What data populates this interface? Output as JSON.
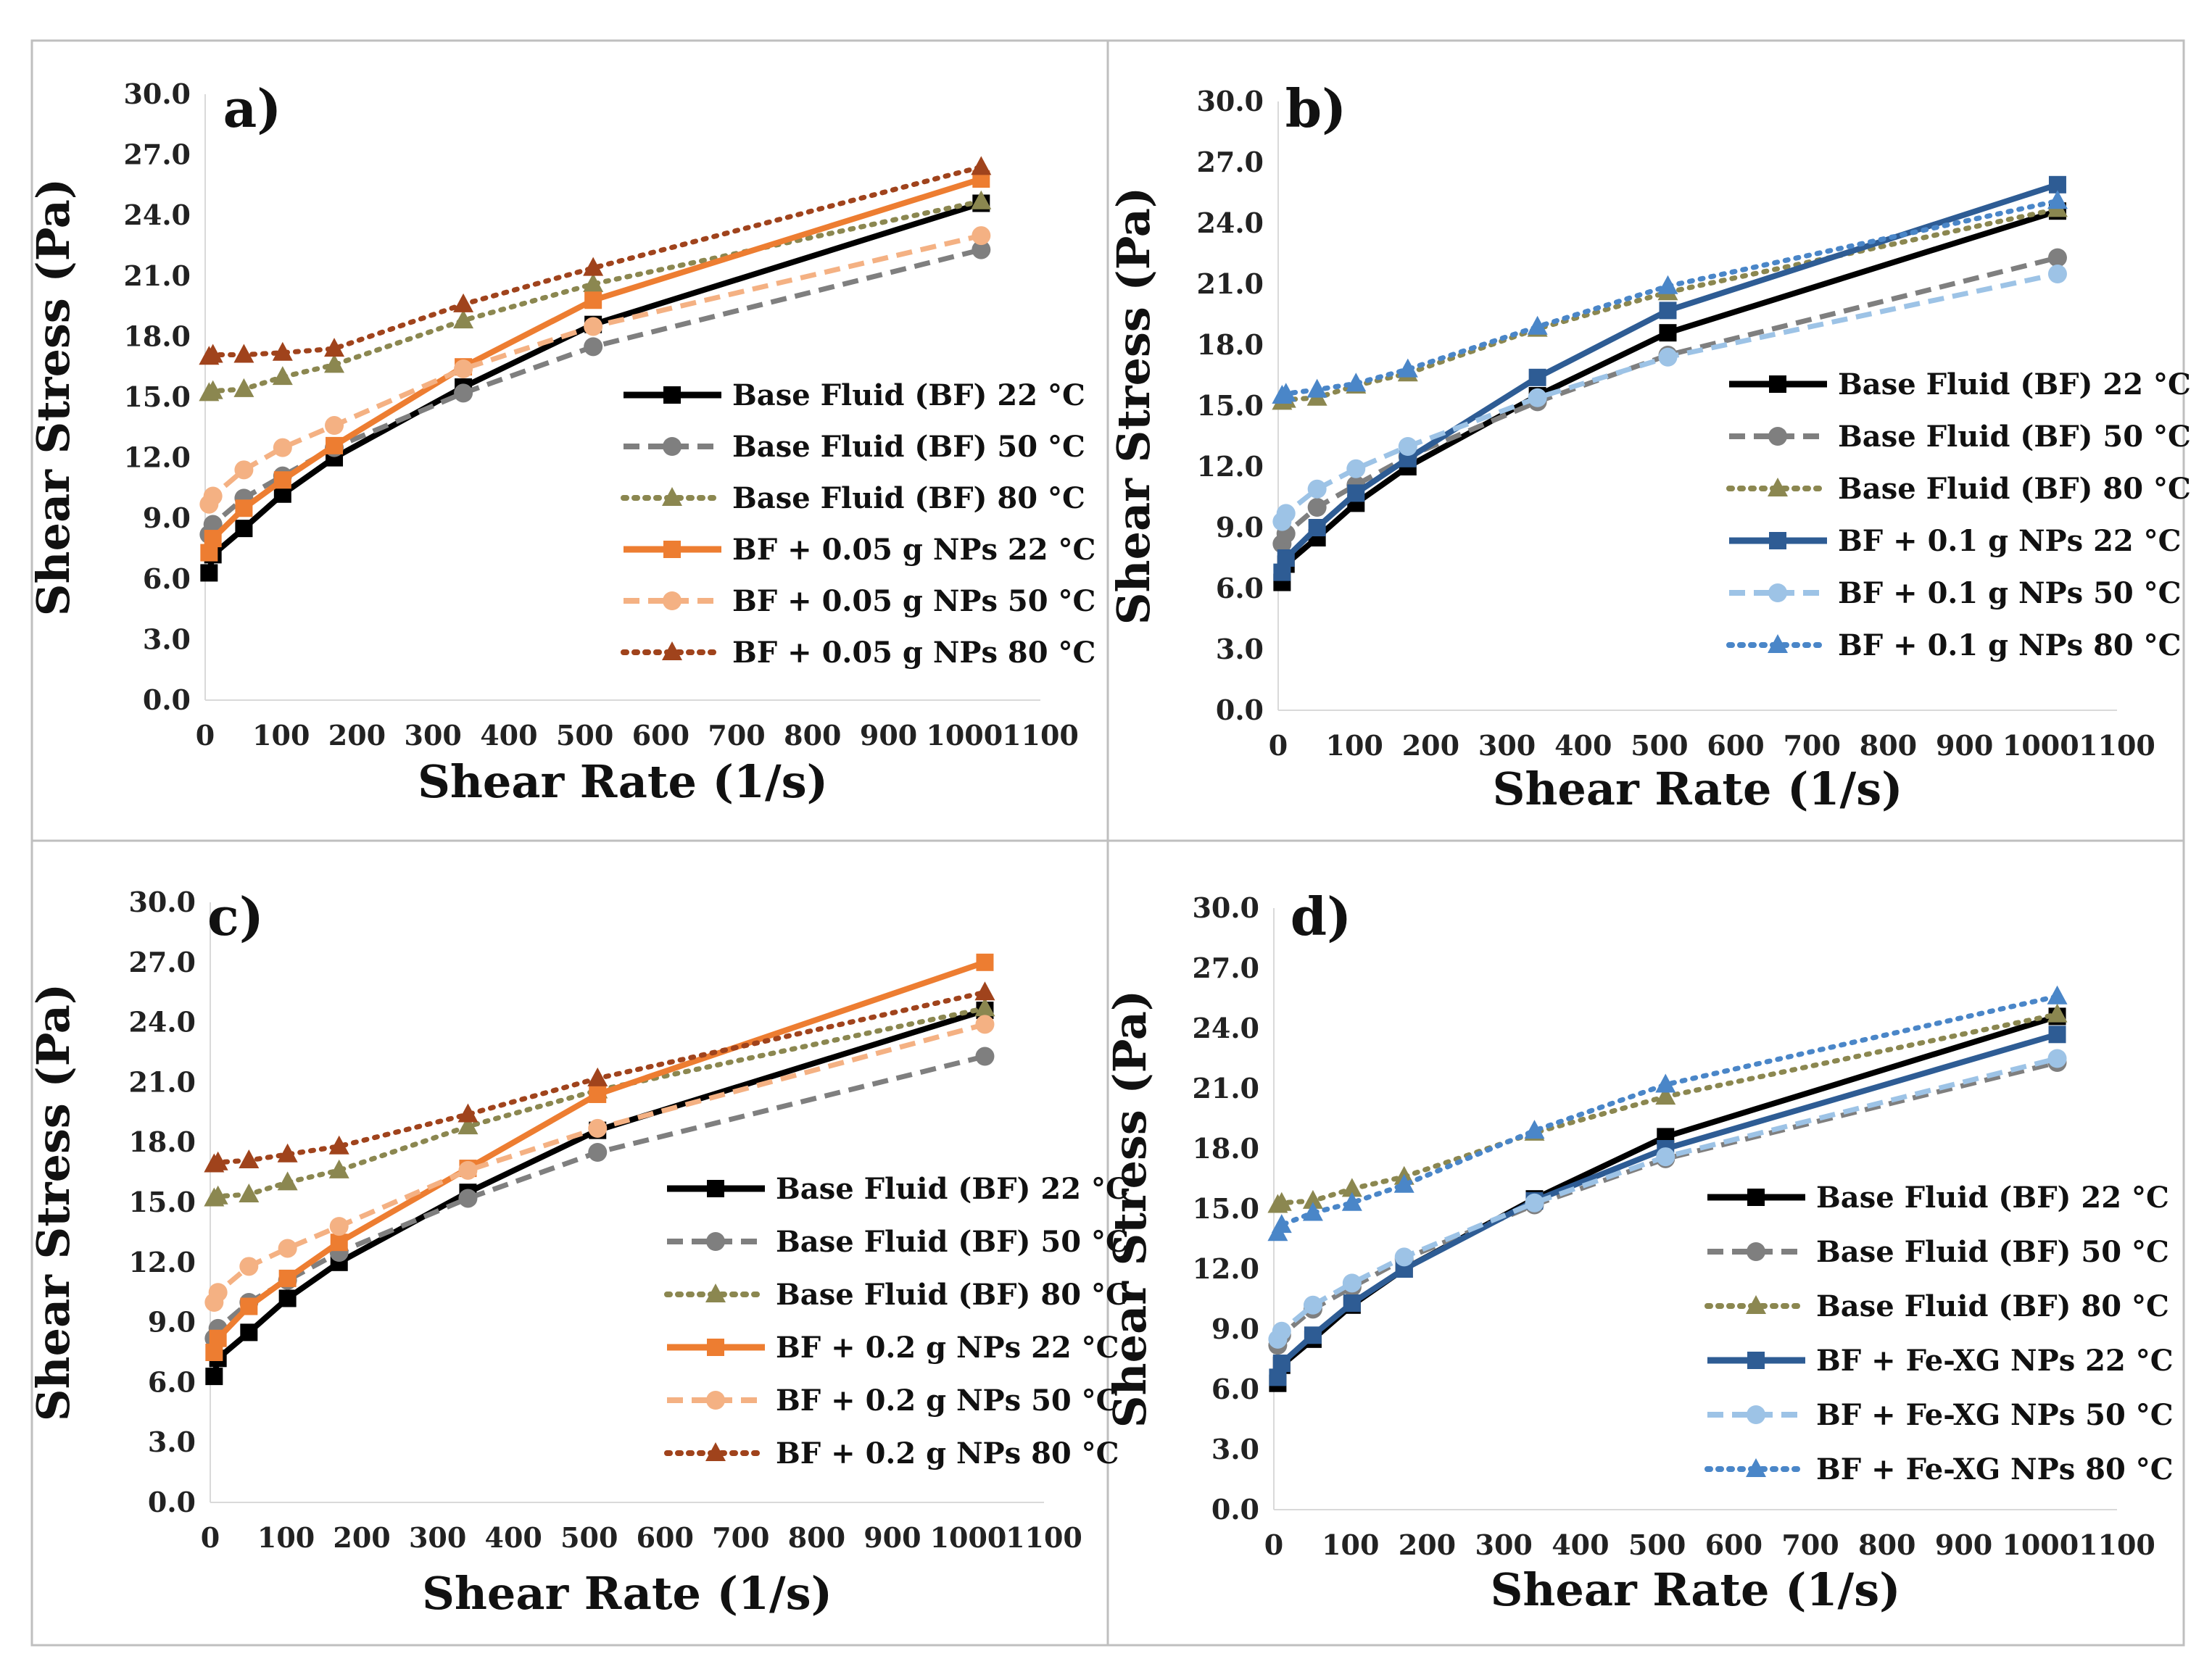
{
  "chart_data": [
    {
      "type": "line",
      "panel_label": "a)",
      "xlabel": "Shear Rate (1/s)",
      "ylabel": "Shear Stress (Pa)",
      "xlim": [
        0,
        1100
      ],
      "ylim": [
        0,
        30
      ],
      "xticks": [
        "0",
        "100",
        "200",
        "300",
        "400",
        "500",
        "600",
        "700",
        "800",
        "900",
        "1000",
        "1100"
      ],
      "yticks": [
        "0.0",
        "3.0",
        "6.0",
        "9.0",
        "12.0",
        "15.0",
        "18.0",
        "21.0",
        "24.0",
        "27.0",
        "30.0"
      ],
      "x": [
        5.1,
        10.2,
        51,
        102,
        170,
        340,
        511,
        1022
      ],
      "legend_position": "lower-right",
      "series": [
        {
          "name": "Base Fluid (BF) 22 °C",
          "color": "#000000",
          "dash": "solid",
          "marker": "square",
          "values": [
            6.3,
            7.2,
            8.5,
            10.2,
            12.0,
            15.5,
            18.6,
            24.6
          ]
        },
        {
          "name": "Base Fluid (BF) 50 °C",
          "color": "#7f7f7f",
          "dash": "dash",
          "marker": "circle",
          "values": [
            8.2,
            8.7,
            10.0,
            11.1,
            12.5,
            15.2,
            17.5,
            22.3
          ]
        },
        {
          "name": "Base Fluid (BF) 80 °C",
          "color": "#8b8750",
          "dash": "dot",
          "marker": "triangle",
          "values": [
            15.2,
            15.3,
            15.4,
            16.0,
            16.6,
            18.8,
            20.6,
            24.7
          ]
        },
        {
          "name": "BF + 0.05 g NPs 22 °C",
          "color": "#ed7d31",
          "dash": "solid",
          "marker": "square",
          "values": [
            7.3,
            8.0,
            9.5,
            10.9,
            12.6,
            16.5,
            19.8,
            25.8
          ]
        },
        {
          "name": "BF + 0.05 g NPs 50 °C",
          "color": "#f4b183",
          "dash": "dash",
          "marker": "circle",
          "values": [
            9.7,
            10.1,
            11.4,
            12.5,
            13.6,
            16.4,
            18.5,
            23.0
          ]
        },
        {
          "name": "BF + 0.05 g NPs 80 °C",
          "color": "#a0431c",
          "dash": "dot",
          "marker": "triangle",
          "values": [
            17.0,
            17.1,
            17.1,
            17.2,
            17.4,
            19.6,
            21.4,
            26.4
          ]
        }
      ]
    },
    {
      "type": "line",
      "panel_label": "b)",
      "xlabel": "Shear Rate (1/s)",
      "ylabel": "Shear Stress (Pa)",
      "xlim": [
        0,
        1100
      ],
      "ylim": [
        0,
        30
      ],
      "xticks": [
        "0",
        "100",
        "200",
        "300",
        "400",
        "500",
        "600",
        "700",
        "800",
        "900",
        "1000",
        "1100"
      ],
      "yticks": [
        "0.0",
        "3.0",
        "6.0",
        "9.0",
        "12.0",
        "15.0",
        "18.0",
        "21.0",
        "24.0",
        "27.0",
        "30.0"
      ],
      "x": [
        5.1,
        10.2,
        51,
        102,
        170,
        340,
        511,
        1022
      ],
      "legend_position": "lower-right",
      "series": [
        {
          "name": "Base Fluid (BF) 22 °C",
          "color": "#000000",
          "dash": "solid",
          "marker": "square",
          "values": [
            6.3,
            7.2,
            8.5,
            10.2,
            12.0,
            15.5,
            18.6,
            24.6
          ]
        },
        {
          "name": "Base Fluid (BF) 50 °C",
          "color": "#7f7f7f",
          "dash": "dash",
          "marker": "circle",
          "values": [
            8.2,
            8.7,
            10.0,
            11.1,
            12.5,
            15.2,
            17.5,
            22.3
          ]
        },
        {
          "name": "Base Fluid (BF) 80 °C",
          "color": "#8b8750",
          "dash": "dot",
          "marker": "triangle",
          "values": [
            15.2,
            15.3,
            15.4,
            16.0,
            16.6,
            18.8,
            20.6,
            24.7
          ]
        },
        {
          "name": "BF + 0.1 g NPs 22 °C",
          "color": "#2e5c94",
          "dash": "solid",
          "marker": "square",
          "values": [
            6.8,
            7.5,
            9.0,
            10.7,
            12.4,
            16.4,
            19.7,
            25.9
          ]
        },
        {
          "name": "BF + 0.1 g NPs 50 °C",
          "color": "#9dc3e6",
          "dash": "dash",
          "marker": "circle",
          "values": [
            9.3,
            9.7,
            10.9,
            11.9,
            13.0,
            15.4,
            17.4,
            21.5
          ]
        },
        {
          "name": "BF + 0.1 g NPs 80 °C",
          "color": "#4a86c8",
          "dash": "dot",
          "marker": "triangle",
          "values": [
            15.5,
            15.6,
            15.8,
            16.1,
            16.8,
            18.9,
            20.9,
            25.1
          ]
        }
      ]
    },
    {
      "type": "line",
      "panel_label": "c)",
      "xlabel": "Shear Rate (1/s)",
      "ylabel": "Shear Stress (Pa)",
      "xlim": [
        0,
        1100
      ],
      "ylim": [
        0,
        30
      ],
      "xticks": [
        "0",
        "100",
        "200",
        "300",
        "400",
        "500",
        "600",
        "700",
        "800",
        "900",
        "1000",
        "1100"
      ],
      "yticks": [
        "0.0",
        "3.0",
        "6.0",
        "9.0",
        "12.0",
        "15.0",
        "18.0",
        "21.0",
        "24.0",
        "27.0",
        "30.0"
      ],
      "x": [
        5.1,
        10.2,
        51,
        102,
        170,
        340,
        511,
        1022
      ],
      "legend_position": "lower-right",
      "series": [
        {
          "name": "Base Fluid (BF) 22 °C",
          "color": "#000000",
          "dash": "solid",
          "marker": "square",
          "values": [
            6.3,
            7.2,
            8.5,
            10.2,
            12.0,
            15.5,
            18.6,
            24.6
          ]
        },
        {
          "name": "Base Fluid (BF) 50 °C",
          "color": "#7f7f7f",
          "dash": "dash",
          "marker": "circle",
          "values": [
            8.2,
            8.7,
            10.0,
            11.1,
            12.5,
            15.2,
            17.5,
            22.3
          ]
        },
        {
          "name": "Base Fluid (BF) 80 °C",
          "color": "#8b8750",
          "dash": "dot",
          "marker": "triangle",
          "values": [
            15.2,
            15.3,
            15.4,
            16.0,
            16.6,
            18.8,
            20.6,
            24.7
          ]
        },
        {
          "name": "BF + 0.2 g NPs 22 °C",
          "color": "#ed7d31",
          "dash": "solid",
          "marker": "square",
          "values": [
            7.5,
            8.2,
            9.8,
            11.2,
            13.0,
            16.7,
            20.4,
            27.0
          ]
        },
        {
          "name": "BF + 0.2 g NPs 50 °C",
          "color": "#f4b183",
          "dash": "dash",
          "marker": "circle",
          "values": [
            10.0,
            10.5,
            11.8,
            12.7,
            13.8,
            16.6,
            18.7,
            23.9
          ]
        },
        {
          "name": "BF + 0.2 g NPs 80 °C",
          "color": "#a0431c",
          "dash": "dot",
          "marker": "triangle",
          "values": [
            16.9,
            17.0,
            17.1,
            17.4,
            17.8,
            19.4,
            21.2,
            25.5
          ]
        }
      ]
    },
    {
      "type": "line",
      "panel_label": "d)",
      "xlabel": "Shear Rate (1/s)",
      "ylabel": "Shear Stress (Pa)",
      "xlim": [
        0,
        1100
      ],
      "ylim": [
        0,
        30
      ],
      "xticks": [
        "0",
        "100",
        "200",
        "300",
        "400",
        "500",
        "600",
        "700",
        "800",
        "900",
        "1000",
        "1100"
      ],
      "yticks": [
        "0.0",
        "3.0",
        "6.0",
        "9.0",
        "12.0",
        "15.0",
        "18.0",
        "21.0",
        "24.0",
        "27.0",
        "30.0"
      ],
      "x": [
        5.1,
        10.2,
        51,
        102,
        170,
        340,
        511,
        1022
      ],
      "legend_position": "lower-right",
      "series": [
        {
          "name": "Base Fluid (BF) 22 °C",
          "color": "#000000",
          "dash": "solid",
          "marker": "square",
          "values": [
            6.3,
            7.2,
            8.5,
            10.2,
            12.0,
            15.5,
            18.6,
            24.6
          ]
        },
        {
          "name": "Base Fluid (BF) 50 °C",
          "color": "#7f7f7f",
          "dash": "dash",
          "marker": "circle",
          "values": [
            8.2,
            8.7,
            10.0,
            11.1,
            12.5,
            15.2,
            17.5,
            22.3
          ]
        },
        {
          "name": "Base Fluid (BF) 80 °C",
          "color": "#8b8750",
          "dash": "dot",
          "marker": "triangle",
          "values": [
            15.2,
            15.3,
            15.4,
            16.0,
            16.6,
            18.8,
            20.6,
            24.7
          ]
        },
        {
          "name": "BF + Fe-XG NPs 22 °C",
          "color": "#2e5c94",
          "dash": "solid",
          "marker": "square",
          "values": [
            6.6,
            7.3,
            8.7,
            10.3,
            12.0,
            15.4,
            18.0,
            23.7
          ]
        },
        {
          "name": "BF + Fe-XG NPs 50 °C",
          "color": "#9dc3e6",
          "dash": "dash",
          "marker": "circle",
          "values": [
            8.5,
            8.9,
            10.2,
            11.3,
            12.6,
            15.3,
            17.6,
            22.5
          ]
        },
        {
          "name": "BF + Fe-XG NPs 80 °C",
          "color": "#4a86c8",
          "dash": "dot",
          "marker": "triangle",
          "values": [
            13.8,
            14.2,
            14.8,
            15.3,
            16.2,
            18.9,
            21.2,
            25.6
          ]
        }
      ]
    }
  ]
}
